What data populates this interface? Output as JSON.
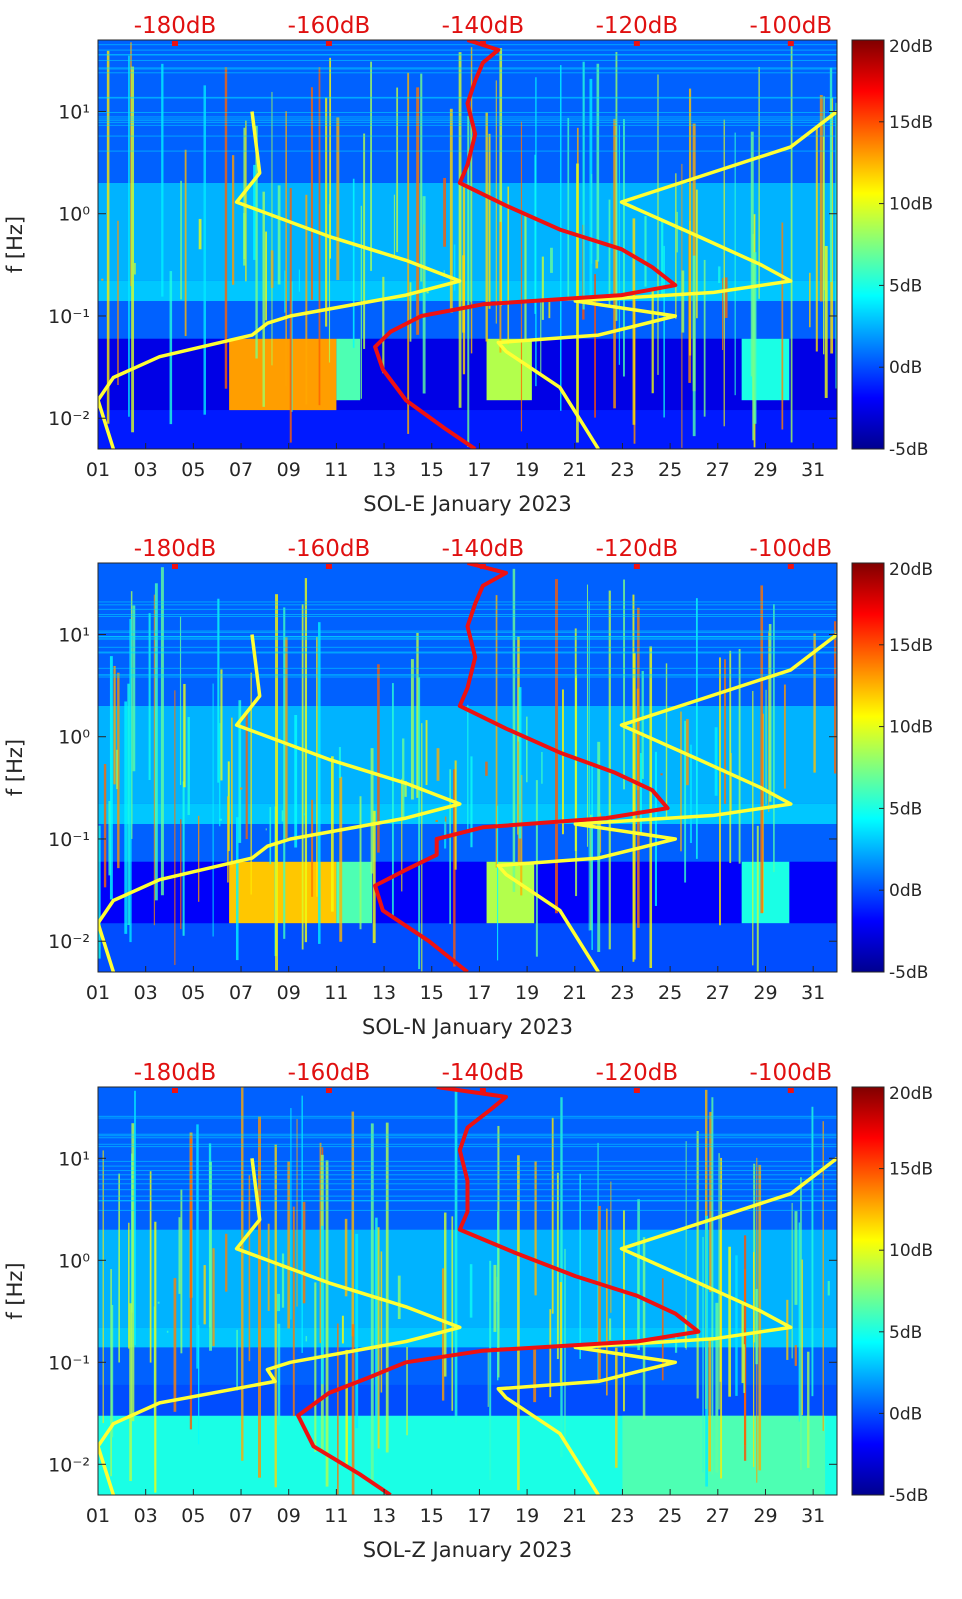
{
  "chart_data": [
    {
      "type": "heatmap",
      "title": "SOL-E January 2023",
      "xlabel": "SOL-E January 2023",
      "ylabel": "f [Hz]",
      "x_ticks": [
        "01",
        "03",
        "05",
        "07",
        "09",
        "11",
        "13",
        "15",
        "17",
        "19",
        "21",
        "23",
        "25",
        "27",
        "29",
        "31"
      ],
      "x_range_days": [
        1,
        32
      ],
      "y_ticks": [
        "10⁻²",
        "10⁻¹",
        "10⁰",
        "10¹"
      ],
      "y_range_hz": [
        0.005,
        50
      ],
      "top_axis_labels": [
        "-180dB",
        "-160dB",
        "-140dB",
        "-120dB",
        "-100dB"
      ],
      "top_axis_range_db": [
        -190,
        -94
      ],
      "colorbar_ticks": [
        "20dB",
        "15dB",
        "10dB",
        "5dB",
        "0dB",
        "-5dB"
      ],
      "colorbar_range_db": [
        -5,
        20
      ],
      "bands": [
        {
          "f_lo": 0.005,
          "f_hi": 0.012,
          "days": [
            1,
            32
          ],
          "level": 0.15
        },
        {
          "f_lo": 0.012,
          "f_hi": 0.06,
          "days": [
            1,
            32
          ],
          "level": 0.1
        },
        {
          "f_lo": 0.012,
          "f_hi": 0.06,
          "days": [
            6.5,
            11
          ],
          "level": 0.72
        },
        {
          "f_lo": 0.015,
          "f_hi": 0.06,
          "days": [
            11,
            12
          ],
          "level": 0.45
        },
        {
          "f_lo": 0.015,
          "f_hi": 0.06,
          "days": [
            17.3,
            19.2
          ],
          "level": 0.55
        },
        {
          "f_lo": 0.015,
          "f_hi": 0.06,
          "days": [
            28,
            30
          ],
          "level": 0.4
        },
        {
          "f_lo": 0.06,
          "f_hi": 0.14,
          "days": [
            1,
            32
          ],
          "level": 0.22
        },
        {
          "f_lo": 0.14,
          "f_hi": 0.22,
          "days": [
            1,
            32
          ],
          "level": 0.32
        },
        {
          "f_lo": 0.22,
          "f_hi": 2.0,
          "days": [
            1,
            32
          ],
          "level": 0.3
        },
        {
          "f_lo": 2.0,
          "f_hi": 50,
          "days": [
            1,
            32
          ],
          "level": 0.22
        }
      ],
      "red_curve": [
        {
          "db": -142,
          "hz": 50
        },
        {
          "db": -138,
          "hz": 40
        },
        {
          "db": -140,
          "hz": 30
        },
        {
          "db": -141,
          "hz": 20
        },
        {
          "db": -142,
          "hz": 12
        },
        {
          "db": -141,
          "hz": 6
        },
        {
          "db": -142,
          "hz": 3
        },
        {
          "db": -143,
          "hz": 2
        },
        {
          "db": -137,
          "hz": 1.2
        },
        {
          "db": -130,
          "hz": 0.7
        },
        {
          "db": -122,
          "hz": 0.45
        },
        {
          "db": -118,
          "hz": 0.3
        },
        {
          "db": -115,
          "hz": 0.2
        },
        {
          "db": -122,
          "hz": 0.16
        },
        {
          "db": -140,
          "hz": 0.13
        },
        {
          "db": -148,
          "hz": 0.1
        },
        {
          "db": -152,
          "hz": 0.07
        },
        {
          "db": -154,
          "hz": 0.05
        },
        {
          "db": -153,
          "hz": 0.03
        },
        {
          "db": -150,
          "hz": 0.015
        },
        {
          "db": -145,
          "hz": 0.008
        },
        {
          "db": -141,
          "hz": 0.005
        }
      ],
      "yellow_curves": [
        [
          {
            "db": -170,
            "hz": 10
          },
          {
            "db": -169,
            "hz": 2.5
          },
          {
            "db": -172,
            "hz": 1.3
          },
          {
            "db": -160,
            "hz": 0.6
          },
          {
            "db": -150,
            "hz": 0.35
          },
          {
            "db": -143,
            "hz": 0.22
          },
          {
            "db": -150,
            "hz": 0.16
          },
          {
            "db": -165,
            "hz": 0.1
          },
          {
            "db": -168,
            "hz": 0.085
          },
          {
            "db": -170,
            "hz": 0.065
          },
          {
            "db": -182,
            "hz": 0.04
          },
          {
            "db": -188,
            "hz": 0.025
          },
          {
            "db": -190,
            "hz": 0.015
          },
          {
            "db": -188,
            "hz": 0.005
          }
        ],
        [
          {
            "db": -94,
            "hz": 10
          },
          {
            "db": -100,
            "hz": 4.5
          },
          {
            "db": -122,
            "hz": 1.3
          },
          {
            "db": -112,
            "hz": 0.6
          },
          {
            "db": -104,
            "hz": 0.32
          },
          {
            "db": -100,
            "hz": 0.22
          },
          {
            "db": -110,
            "hz": 0.17
          },
          {
            "db": -128,
            "hz": 0.14
          },
          {
            "db": -115,
            "hz": 0.1
          },
          {
            "db": -125,
            "hz": 0.065
          },
          {
            "db": -138,
            "hz": 0.055
          },
          {
            "db": -137,
            "hz": 0.045
          },
          {
            "db": -130,
            "hz": 0.02
          },
          {
            "db": -125,
            "hz": 0.005
          }
        ]
      ]
    },
    {
      "type": "heatmap",
      "title": "SOL-N January 2023",
      "xlabel": "SOL-N January 2023",
      "ylabel": "f [Hz]",
      "x_ticks": [
        "01",
        "03",
        "05",
        "07",
        "09",
        "11",
        "13",
        "15",
        "17",
        "19",
        "21",
        "23",
        "25",
        "27",
        "29",
        "31"
      ],
      "x_range_days": [
        1,
        32
      ],
      "y_ticks": [
        "10⁻²",
        "10⁻¹",
        "10⁰",
        "10¹"
      ],
      "y_range_hz": [
        0.005,
        50
      ],
      "top_axis_labels": [
        "-180dB",
        "-160dB",
        "-140dB",
        "-120dB",
        "-100dB"
      ],
      "top_axis_range_db": [
        -190,
        -94
      ],
      "colorbar_ticks": [
        "20dB",
        "15dB",
        "10dB",
        "5dB",
        "0dB",
        "-5dB"
      ],
      "colorbar_range_db": [
        -5,
        20
      ],
      "bands": [
        {
          "f_lo": 0.005,
          "f_hi": 0.015,
          "days": [
            1,
            32
          ],
          "level": 0.2
        },
        {
          "f_lo": 0.015,
          "f_hi": 0.06,
          "days": [
            1,
            32
          ],
          "level": 0.12
        },
        {
          "f_lo": 0.015,
          "f_hi": 0.06,
          "days": [
            6.5,
            11
          ],
          "level": 0.68
        },
        {
          "f_lo": 0.015,
          "f_hi": 0.06,
          "days": [
            11,
            12.5
          ],
          "level": 0.45
        },
        {
          "f_lo": 0.015,
          "f_hi": 0.06,
          "days": [
            17.3,
            19.3
          ],
          "level": 0.55
        },
        {
          "f_lo": 0.015,
          "f_hi": 0.06,
          "days": [
            28,
            30
          ],
          "level": 0.4
        },
        {
          "f_lo": 0.06,
          "f_hi": 0.14,
          "days": [
            1,
            32
          ],
          "level": 0.22
        },
        {
          "f_lo": 0.14,
          "f_hi": 0.22,
          "days": [
            1,
            32
          ],
          "level": 0.32
        },
        {
          "f_lo": 0.22,
          "f_hi": 2.0,
          "days": [
            1,
            32
          ],
          "level": 0.3
        },
        {
          "f_lo": 2.0,
          "f_hi": 50,
          "days": [
            1,
            32
          ],
          "level": 0.22
        }
      ],
      "red_curve": [
        {
          "db": -142,
          "hz": 50
        },
        {
          "db": -137,
          "hz": 40
        },
        {
          "db": -140,
          "hz": 30
        },
        {
          "db": -141,
          "hz": 20
        },
        {
          "db": -142,
          "hz": 12
        },
        {
          "db": -141,
          "hz": 6
        },
        {
          "db": -142,
          "hz": 3
        },
        {
          "db": -143,
          "hz": 2
        },
        {
          "db": -137,
          "hz": 1.2
        },
        {
          "db": -130,
          "hz": 0.7
        },
        {
          "db": -123,
          "hz": 0.45
        },
        {
          "db": -118,
          "hz": 0.3
        },
        {
          "db": -116,
          "hz": 0.2
        },
        {
          "db": -124,
          "hz": 0.16
        },
        {
          "db": -140,
          "hz": 0.13
        },
        {
          "db": -146,
          "hz": 0.1
        },
        {
          "db": -146,
          "hz": 0.07
        },
        {
          "db": -150,
          "hz": 0.05
        },
        {
          "db": -154,
          "hz": 0.035
        },
        {
          "db": -153,
          "hz": 0.02
        },
        {
          "db": -147,
          "hz": 0.01
        },
        {
          "db": -142,
          "hz": 0.005
        }
      ],
      "yellow_curves": [
        [
          {
            "db": -170,
            "hz": 10
          },
          {
            "db": -169,
            "hz": 2.5
          },
          {
            "db": -172,
            "hz": 1.3
          },
          {
            "db": -160,
            "hz": 0.6
          },
          {
            "db": -150,
            "hz": 0.35
          },
          {
            "db": -143,
            "hz": 0.22
          },
          {
            "db": -150,
            "hz": 0.16
          },
          {
            "db": -165,
            "hz": 0.1
          },
          {
            "db": -168,
            "hz": 0.085
          },
          {
            "db": -170,
            "hz": 0.065
          },
          {
            "db": -182,
            "hz": 0.04
          },
          {
            "db": -188,
            "hz": 0.025
          },
          {
            "db": -190,
            "hz": 0.015
          },
          {
            "db": -188,
            "hz": 0.005
          }
        ],
        [
          {
            "db": -94,
            "hz": 10
          },
          {
            "db": -100,
            "hz": 4.5
          },
          {
            "db": -122,
            "hz": 1.3
          },
          {
            "db": -112,
            "hz": 0.6
          },
          {
            "db": -104,
            "hz": 0.32
          },
          {
            "db": -100,
            "hz": 0.22
          },
          {
            "db": -110,
            "hz": 0.17
          },
          {
            "db": -128,
            "hz": 0.14
          },
          {
            "db": -115,
            "hz": 0.1
          },
          {
            "db": -125,
            "hz": 0.065
          },
          {
            "db": -138,
            "hz": 0.055
          },
          {
            "db": -137,
            "hz": 0.045
          },
          {
            "db": -130,
            "hz": 0.02
          },
          {
            "db": -125,
            "hz": 0.005
          }
        ]
      ]
    },
    {
      "type": "heatmap",
      "title": "SOL-Z January 2023",
      "xlabel": "SOL-Z January 2023",
      "ylabel": "f [Hz]",
      "x_ticks": [
        "01",
        "03",
        "05",
        "07",
        "09",
        "11",
        "13",
        "15",
        "17",
        "19",
        "21",
        "23",
        "25",
        "27",
        "29",
        "31"
      ],
      "x_range_days": [
        1,
        32
      ],
      "y_ticks": [
        "10⁻²",
        "10⁻¹",
        "10⁰",
        "10¹"
      ],
      "y_range_hz": [
        0.005,
        50
      ],
      "top_axis_labels": [
        "-180dB",
        "-160dB",
        "-140dB",
        "-120dB",
        "-100dB"
      ],
      "top_axis_range_db": [
        -190,
        -94
      ],
      "colorbar_ticks": [
        "20dB",
        "15dB",
        "10dB",
        "5dB",
        "0dB",
        "-5dB"
      ],
      "colorbar_range_db": [
        -5,
        20
      ],
      "bands": [
        {
          "f_lo": 0.005,
          "f_hi": 0.03,
          "days": [
            1,
            32
          ],
          "level": 0.4
        },
        {
          "f_lo": 0.005,
          "f_hi": 0.03,
          "days": [
            23,
            31.5
          ],
          "level": 0.45
        },
        {
          "f_lo": 0.03,
          "f_hi": 0.06,
          "days": [
            1,
            32
          ],
          "level": 0.2
        },
        {
          "f_lo": 0.06,
          "f_hi": 0.14,
          "days": [
            1,
            32
          ],
          "level": 0.22
        },
        {
          "f_lo": 0.14,
          "f_hi": 0.22,
          "days": [
            1,
            32
          ],
          "level": 0.32
        },
        {
          "f_lo": 0.22,
          "f_hi": 2.0,
          "days": [
            1,
            32
          ],
          "level": 0.3
        },
        {
          "f_lo": 2.0,
          "f_hi": 50,
          "days": [
            1,
            32
          ],
          "level": 0.22
        }
      ],
      "red_curve": [
        {
          "db": -146,
          "hz": 50
        },
        {
          "db": -137,
          "hz": 40
        },
        {
          "db": -139,
          "hz": 30
        },
        {
          "db": -142,
          "hz": 20
        },
        {
          "db": -143,
          "hz": 12
        },
        {
          "db": -142,
          "hz": 6
        },
        {
          "db": -142,
          "hz": 3
        },
        {
          "db": -143,
          "hz": 2
        },
        {
          "db": -136,
          "hz": 1.2
        },
        {
          "db": -128,
          "hz": 0.7
        },
        {
          "db": -120,
          "hz": 0.45
        },
        {
          "db": -115,
          "hz": 0.3
        },
        {
          "db": -112,
          "hz": 0.2
        },
        {
          "db": -120,
          "hz": 0.16
        },
        {
          "db": -140,
          "hz": 0.13
        },
        {
          "db": -150,
          "hz": 0.1
        },
        {
          "db": -155,
          "hz": 0.07
        },
        {
          "db": -160,
          "hz": 0.05
        },
        {
          "db": -164,
          "hz": 0.03
        },
        {
          "db": -162,
          "hz": 0.015
        },
        {
          "db": -156,
          "hz": 0.008
        },
        {
          "db": -152,
          "hz": 0.005
        }
      ],
      "yellow_curves": [
        [
          {
            "db": -170,
            "hz": 10
          },
          {
            "db": -169,
            "hz": 2.5
          },
          {
            "db": -172,
            "hz": 1.3
          },
          {
            "db": -160,
            "hz": 0.6
          },
          {
            "db": -150,
            "hz": 0.35
          },
          {
            "db": -143,
            "hz": 0.22
          },
          {
            "db": -150,
            "hz": 0.16
          },
          {
            "db": -165,
            "hz": 0.1
          },
          {
            "db": -168,
            "hz": 0.085
          },
          {
            "db": -167,
            "hz": 0.065
          },
          {
            "db": -182,
            "hz": 0.04
          },
          {
            "db": -188,
            "hz": 0.025
          },
          {
            "db": -190,
            "hz": 0.015
          },
          {
            "db": -188,
            "hz": 0.005
          }
        ],
        [
          {
            "db": -94,
            "hz": 10
          },
          {
            "db": -100,
            "hz": 4.5
          },
          {
            "db": -122,
            "hz": 1.3
          },
          {
            "db": -112,
            "hz": 0.6
          },
          {
            "db": -104,
            "hz": 0.32
          },
          {
            "db": -100,
            "hz": 0.22
          },
          {
            "db": -110,
            "hz": 0.17
          },
          {
            "db": -128,
            "hz": 0.14
          },
          {
            "db": -115,
            "hz": 0.1
          },
          {
            "db": -125,
            "hz": 0.065
          },
          {
            "db": -138,
            "hz": 0.055
          },
          {
            "db": -137,
            "hz": 0.045
          },
          {
            "db": -130,
            "hz": 0.02
          },
          {
            "db": -125,
            "hz": 0.005
          }
        ]
      ]
    }
  ]
}
